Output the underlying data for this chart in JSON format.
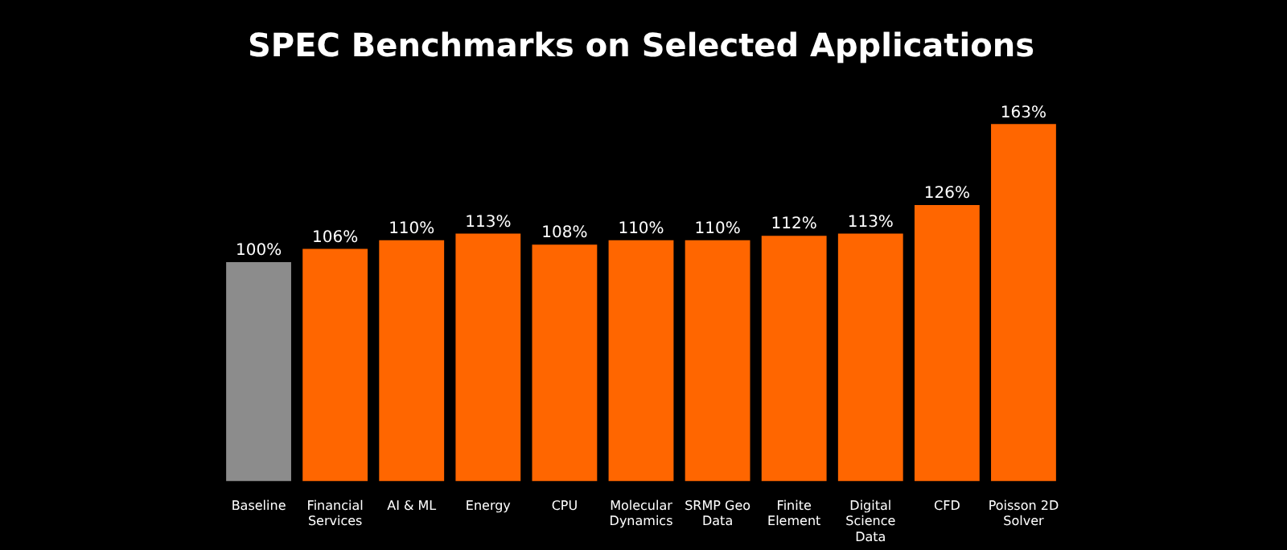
{
  "chart_data": {
    "type": "bar",
    "title": "SPEC Benchmarks on Selected Applications",
    "categories": [
      "Baseline",
      "Financial Services",
      "AI & ML",
      "Energy",
      "CPU",
      "Molecular Dynamics",
      "SRMP Geo Data",
      "Finite Element",
      "Digital Science Data",
      "CFD",
      "Poisson 2D Solver"
    ],
    "values": [
      100,
      106,
      110,
      113,
      108,
      110,
      110,
      112,
      113,
      126,
      163
    ],
    "colors": [
      "#8c8c8c",
      "#ff6600",
      "#ff6600",
      "#ff6600",
      "#ff6600",
      "#ff6600",
      "#ff6600",
      "#ff6600",
      "#ff6600",
      "#ff6600",
      "#ff6600"
    ],
    "value_labels": [
      "100%",
      "106%",
      "110%",
      "113%",
      "108%",
      "110%",
      "110%",
      "112%",
      "113%",
      "126%",
      "163%"
    ],
    "legend": false
  }
}
